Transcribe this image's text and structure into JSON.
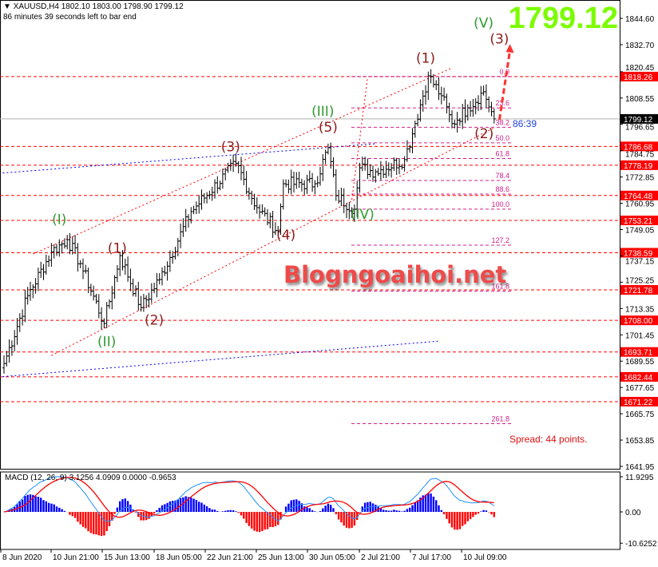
{
  "header": {
    "symbol_line": "XAUUSD,H4  1802.10 1803.00 1798.90 1799.12",
    "timer_line": "86 minutes 39 seconds left to bar end"
  },
  "big_price": "1799.12",
  "watermark": "Blogngoaihoi.net",
  "spread_text": "Spread: 44 points.",
  "bar_timer": "86:39",
  "colors": {
    "bars": "#000000",
    "level_lines": "#ff0000",
    "fib_lines": "#d0208a",
    "blue_lines": "#0000ff",
    "wave_green": "#2e9a2e",
    "wave_red": "#8b1a1a",
    "big_price": "#7cfc00",
    "macd_hist_pos": "#0000ff",
    "macd_hist_neg": "#ff0000",
    "macd_main": "#1e90ff",
    "macd_signal": "#ff0000"
  },
  "chart_data": {
    "type": "ohlc",
    "symbol": "XAUUSD",
    "timeframe": "H4",
    "ylim": [
      1641.95,
      1844.6
    ],
    "y_ticks": [
      "1844.60",
      "1832.70",
      "1820.45",
      "1808.55",
      "1796.65",
      "1784.75",
      "1772.85",
      "1760.95",
      "1749.05",
      "1737.15",
      "1725.25",
      "1713.35",
      "1701.45",
      "1689.55",
      "1677.65",
      "1665.75",
      "1653.85",
      "1641.95"
    ],
    "x_ticks": [
      "8 Jun 2020",
      "10 Jun 21:00",
      "15 Jun 13:00",
      "18 Jun 05:00",
      "22 Jun 21:00",
      "25 Jun 13:00",
      "30 Jun 05:00",
      "2 Jul 21:00",
      "7 Jul 17:00",
      "10 Jul 09:00"
    ],
    "current_price": "1799.12",
    "swing_path": [
      {
        "bar": 0,
        "price": 1688.5
      },
      {
        "bar": 9,
        "price": 1719.2
      },
      {
        "bar": 18,
        "price": 1739.0
      },
      {
        "bar": 24,
        "price": 1744.5
      },
      {
        "bar": 29,
        "price": 1733.7
      },
      {
        "bar": 38,
        "price": 1706.6
      },
      {
        "bar": 44,
        "price": 1737.3
      },
      {
        "bar": 52,
        "price": 1713.8
      },
      {
        "bar": 59,
        "price": 1726.5
      },
      {
        "bar": 71,
        "price": 1757.2
      },
      {
        "bar": 88,
        "price": 1779.0
      },
      {
        "bar": 96,
        "price": 1759.0
      },
      {
        "bar": 104,
        "price": 1748.1
      },
      {
        "bar": 106,
        "price": 1769.8
      },
      {
        "bar": 118,
        "price": 1769.8
      },
      {
        "bar": 123,
        "price": 1786.1
      },
      {
        "bar": 126,
        "price": 1764.4
      },
      {
        "bar": 133,
        "price": 1758.3
      },
      {
        "bar": 135,
        "price": 1777.0
      },
      {
        "bar": 141,
        "price": 1775.2
      },
      {
        "bar": 152,
        "price": 1780.7
      },
      {
        "bar": 156,
        "price": 1797.0
      },
      {
        "bar": 161,
        "price": 1818.6
      },
      {
        "bar": 166,
        "price": 1809.6
      },
      {
        "bar": 170,
        "price": 1797.0
      },
      {
        "bar": 176,
        "price": 1804.1
      },
      {
        "bar": 182,
        "price": 1811.4
      },
      {
        "bar": 186,
        "price": 1799.12
      }
    ],
    "levels": [
      "1818.26",
      "1786.68",
      "1778.19",
      "1764.48",
      "1753.21",
      "1738.59",
      "1721.78",
      "1708.00",
      "1693.71",
      "1682.44",
      "1671.22"
    ],
    "fibonacci": {
      "from_price": 1818.26,
      "to_price": 1758.3,
      "levels": [
        "0.0",
        "23.6",
        "38.2",
        "50.0",
        "61.8",
        "78.4",
        "88.6",
        "100.0",
        "127.2",
        "161.8",
        "261.8"
      ]
    },
    "trendlines": [
      {
        "style": "red-dotted",
        "from": {
          "bar": 11,
          "price": 1738.0
        },
        "to": {
          "bar": 170,
          "price": 1822.2
        }
      },
      {
        "style": "red-dotted",
        "from": {
          "bar": 18,
          "price": 1692.1
        },
        "to": {
          "bar": 186,
          "price": 1795.1
        }
      },
      {
        "style": "red-dotted",
        "from": {
          "bar": 132,
          "price": 1762.6
        },
        "to": {
          "bar": 138,
          "price": 1817.9
        }
      },
      {
        "style": "blue-dotted",
        "from": {
          "bar": -2,
          "price": 1774.5
        },
        "to": {
          "bar": 141,
          "price": 1787.9
        }
      },
      {
        "style": "blue-dotted",
        "from": {
          "bar": -2,
          "price": 1682.4
        },
        "to": {
          "bar": 165,
          "price": 1698.6
        }
      }
    ],
    "arrow": {
      "from": {
        "bar": 188,
        "price": 1798.7
      },
      "to": {
        "bar": 192,
        "price": 1833.0
      }
    },
    "wave_labels": [
      {
        "text": "(V)",
        "color": "green",
        "bar": 182,
        "price": 1840.5
      },
      {
        "text": "(3)",
        "color": "red",
        "bar": 188,
        "price": 1834.0
      },
      {
        "text": "(1)",
        "color": "red",
        "bar": 160,
        "price": 1824.5
      },
      {
        "text": "(III)",
        "color": "green",
        "bar": 121,
        "price": 1800.5
      },
      {
        "text": "(5)",
        "color": "red",
        "bar": 123,
        "price": 1794.0
      },
      {
        "text": "(3)",
        "color": "red",
        "bar": 86,
        "price": 1784.5
      },
      {
        "text": "(I)",
        "color": "green",
        "bar": 21,
        "price": 1751.5
      },
      {
        "text": "(1)",
        "color": "red",
        "bar": 43,
        "price": 1738.5
      },
      {
        "text": "(4)",
        "color": "red",
        "bar": 107,
        "price": 1744.5
      },
      {
        "text": "(2)",
        "color": "red",
        "bar": 57,
        "price": 1706.0
      },
      {
        "text": "(II)",
        "color": "green",
        "bar": 39,
        "price": 1696.3
      },
      {
        "text": "(IV)",
        "color": "green",
        "bar": 136,
        "price": 1754.0
      },
      {
        "text": "(2)",
        "color": "red",
        "bar": 184,
        "price": 1790.5
      }
    ],
    "macd": {
      "label": "MACD (12, 26, 9) 3.1256 4.0909 0.0000 -0.9653",
      "params": [
        12,
        26,
        9
      ],
      "ylim": [
        -10.6252,
        11.9295
      ],
      "y_ticks": [
        "11.9295",
        "0.00",
        "-10.6252"
      ]
    }
  }
}
